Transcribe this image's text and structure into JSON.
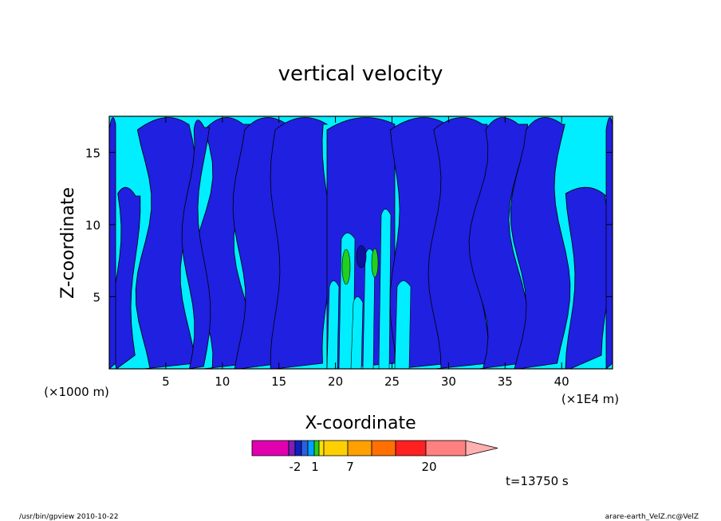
{
  "chart_data": {
    "type": "heatmap",
    "title": "vertical velocity",
    "xlabel": "X-coordinate",
    "ylabel": "Z-coordinate",
    "x_scale_note": "(×1E4 m)",
    "y_scale_note": "(×1000 m)",
    "x_ticks": [
      5,
      10,
      15,
      20,
      25,
      30,
      35,
      40
    ],
    "y_ticks": [
      5,
      10,
      15
    ],
    "xlim": [
      0,
      44.5
    ],
    "ylim": [
      0,
      17.5
    ],
    "colorbar": {
      "colors": [
        "#e000b0",
        "#e000b0",
        "#7a1fb8",
        "#2a2ac8",
        "#1f5fe0",
        "#00a0ff",
        "#20d020",
        "#a0e000",
        "#ffe000",
        "#ffc000",
        "#ff9c00",
        "#ff6a00",
        "#ff2020",
        "#ff7f7f",
        "#ffb0b0"
      ],
      "tick_labels": [
        "-2",
        "1",
        "7",
        "20"
      ]
    },
    "field_colors": {
      "negative": "#2020e0",
      "positive": "#00eeff",
      "weak_positive_green": "#20d020",
      "strong_negative": "#1010a0"
    },
    "time_label": "t=13750 s"
  },
  "footer": {
    "left": "/usr/bin/gpview   2010-10-22",
    "right": "arare-earth_VelZ.nc@VelZ"
  }
}
